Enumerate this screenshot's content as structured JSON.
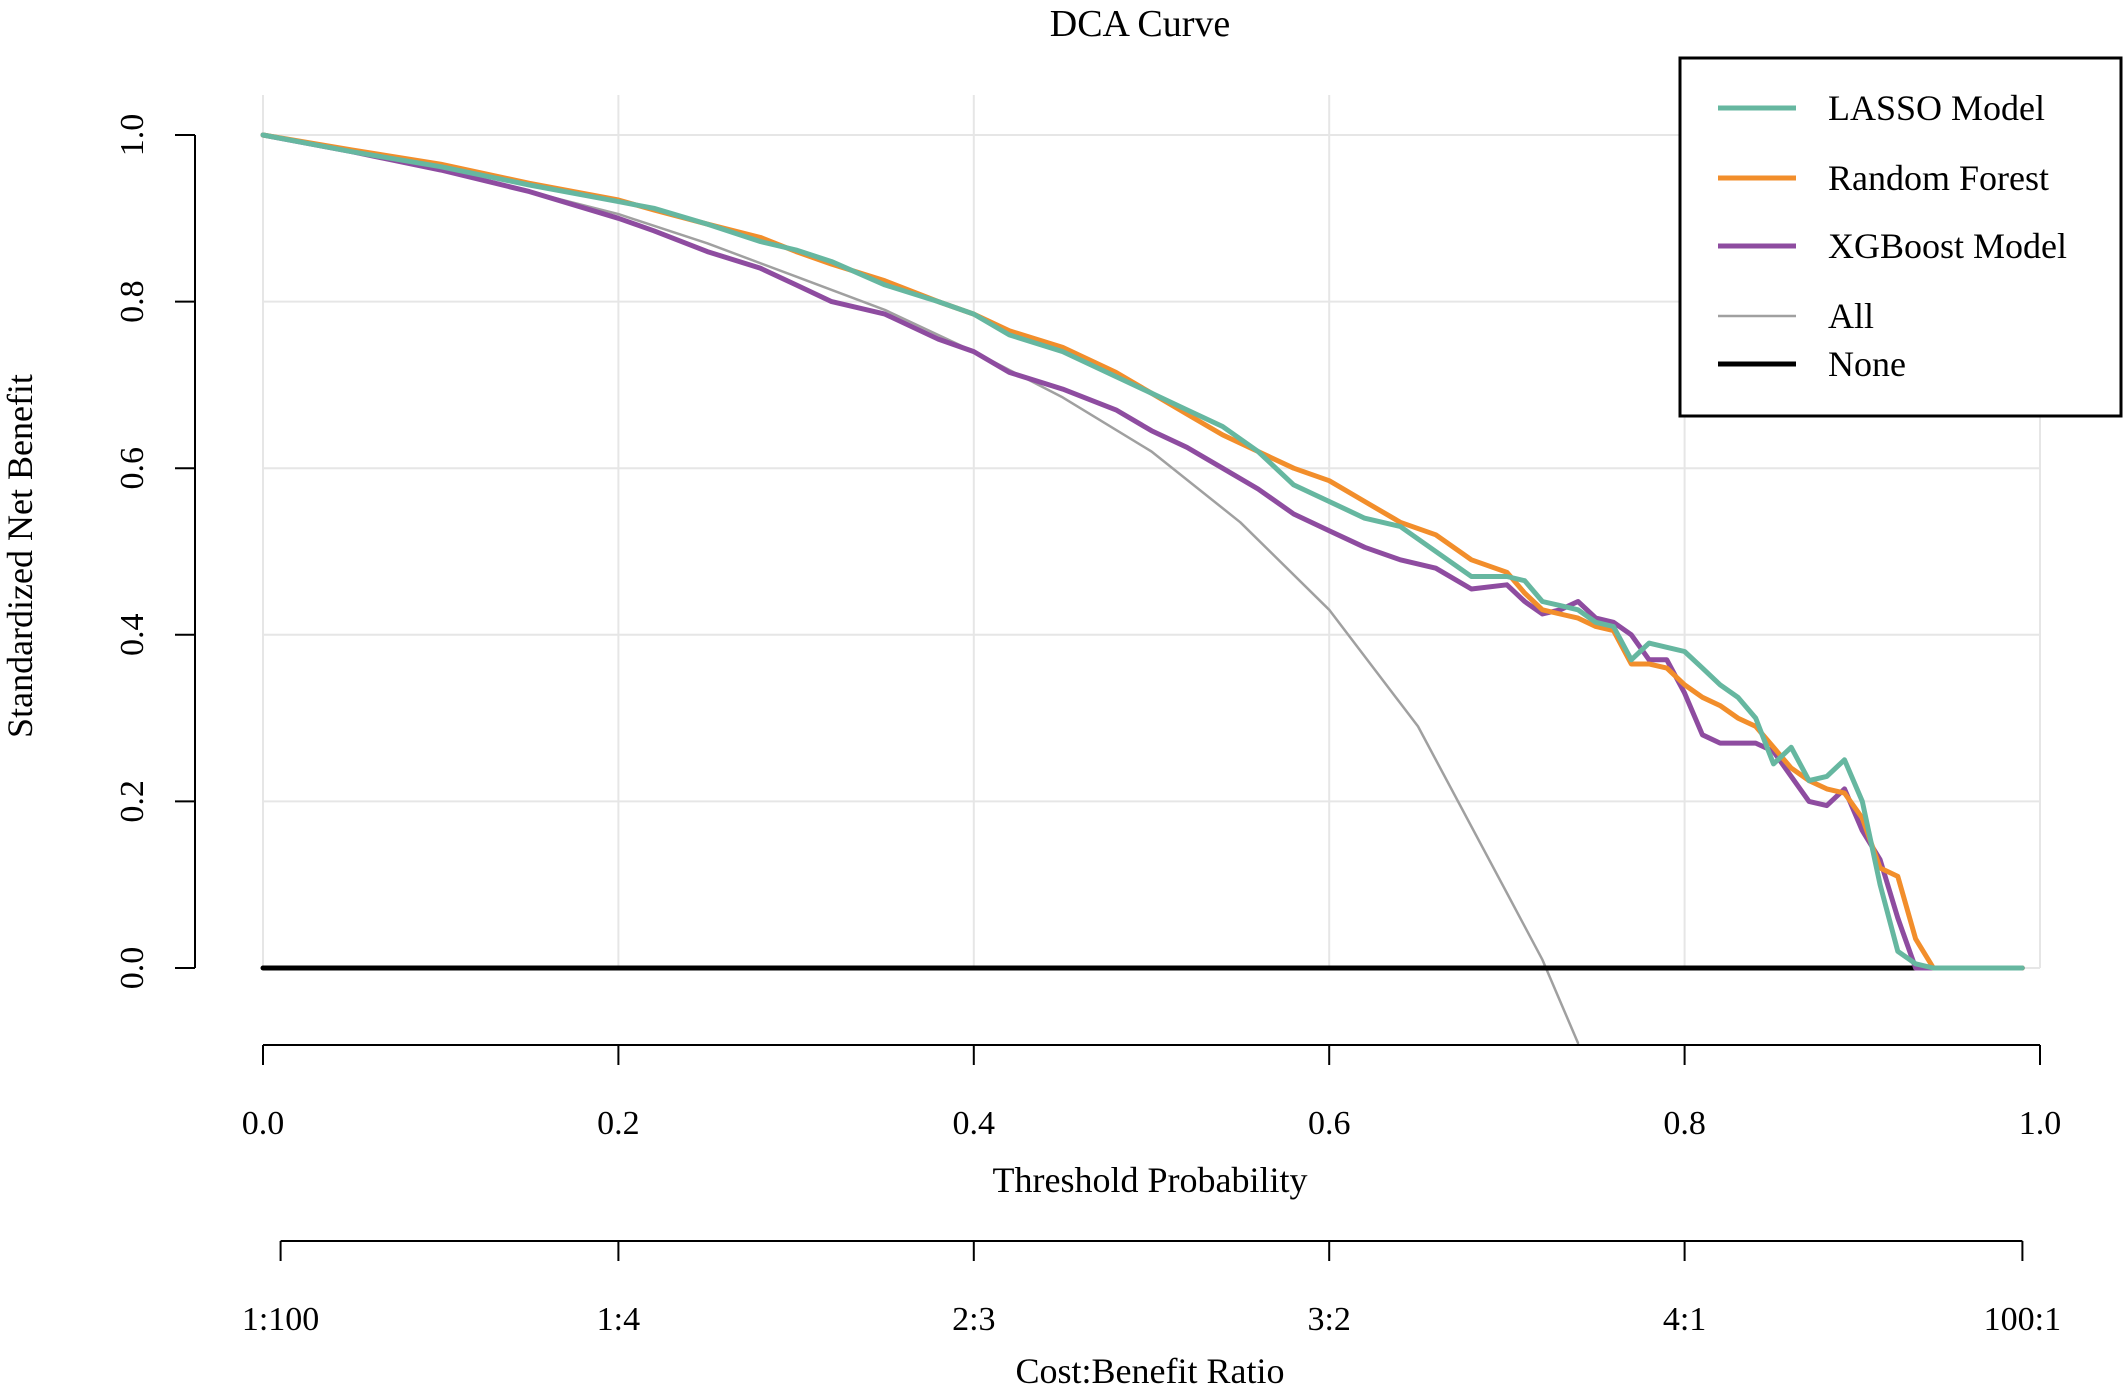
{
  "chart_data": {
    "type": "line",
    "title": "DCA Curve",
    "xlabel": "Threshold Probability",
    "ylabel": "Standardized Net Benefit",
    "x2label": "Cost:Benefit Ratio",
    "xlim": [
      0,
      1
    ],
    "ylim": [
      -0.1,
      1.05
    ],
    "grid": true,
    "legend_position": "top-right",
    "x_ticks": [
      "0.0",
      "0.2",
      "0.4",
      "0.6",
      "0.8",
      "1.0"
    ],
    "y_ticks": [
      "0.0",
      "0.2",
      "0.4",
      "0.6",
      "0.8",
      "1.0"
    ],
    "x2_ticks": [
      {
        "label": "1:100",
        "x": 0.0099
      },
      {
        "label": "1:4",
        "x": 0.2
      },
      {
        "label": "2:3",
        "x": 0.4
      },
      {
        "label": "3:2",
        "x": 0.6
      },
      {
        "label": "4:1",
        "x": 0.8
      },
      {
        "label": "100:1",
        "x": 0.9901
      }
    ],
    "series": [
      {
        "name": "LASSO Model",
        "color": "#66b7a0",
        "x": [
          0.0,
          0.05,
          0.1,
          0.15,
          0.2,
          0.22,
          0.25,
          0.28,
          0.3,
          0.32,
          0.35,
          0.38,
          0.4,
          0.42,
          0.45,
          0.48,
          0.5,
          0.52,
          0.54,
          0.56,
          0.58,
          0.6,
          0.62,
          0.64,
          0.66,
          0.68,
          0.7,
          0.71,
          0.72,
          0.73,
          0.74,
          0.75,
          0.76,
          0.77,
          0.78,
          0.79,
          0.8,
          0.81,
          0.82,
          0.83,
          0.84,
          0.85,
          0.86,
          0.87,
          0.88,
          0.89,
          0.9,
          0.91,
          0.92,
          0.93,
          0.94,
          0.96,
          0.99
        ],
        "y": [
          1.0,
          0.98,
          0.962,
          0.94,
          0.92,
          0.912,
          0.893,
          0.872,
          0.862,
          0.848,
          0.82,
          0.8,
          0.785,
          0.76,
          0.74,
          0.71,
          0.69,
          0.67,
          0.65,
          0.62,
          0.58,
          0.56,
          0.54,
          0.53,
          0.5,
          0.47,
          0.47,
          0.465,
          0.44,
          0.435,
          0.43,
          0.415,
          0.41,
          0.37,
          0.39,
          0.385,
          0.38,
          0.36,
          0.34,
          0.325,
          0.3,
          0.245,
          0.265,
          0.225,
          0.23,
          0.25,
          0.2,
          0.1,
          0.02,
          0.005,
          0.0,
          0.0,
          0.0
        ]
      },
      {
        "name": "Random Forest",
        "color": "#f28e2b",
        "x": [
          0.0,
          0.05,
          0.1,
          0.15,
          0.2,
          0.22,
          0.25,
          0.28,
          0.3,
          0.32,
          0.35,
          0.38,
          0.4,
          0.42,
          0.45,
          0.48,
          0.5,
          0.52,
          0.54,
          0.56,
          0.58,
          0.6,
          0.62,
          0.64,
          0.66,
          0.68,
          0.7,
          0.71,
          0.72,
          0.73,
          0.74,
          0.75,
          0.76,
          0.77,
          0.78,
          0.79,
          0.8,
          0.81,
          0.82,
          0.83,
          0.84,
          0.85,
          0.86,
          0.87,
          0.88,
          0.89,
          0.9,
          0.91,
          0.92,
          0.93,
          0.94,
          0.96,
          0.99
        ],
        "y": [
          1.0,
          0.982,
          0.965,
          0.942,
          0.922,
          0.91,
          0.893,
          0.877,
          0.86,
          0.845,
          0.825,
          0.8,
          0.785,
          0.765,
          0.745,
          0.715,
          0.69,
          0.665,
          0.64,
          0.62,
          0.6,
          0.585,
          0.56,
          0.535,
          0.52,
          0.49,
          0.475,
          0.45,
          0.43,
          0.425,
          0.42,
          0.41,
          0.405,
          0.365,
          0.365,
          0.36,
          0.34,
          0.325,
          0.315,
          0.3,
          0.29,
          0.265,
          0.24,
          0.225,
          0.215,
          0.21,
          0.18,
          0.12,
          0.11,
          0.035,
          0.0,
          0.0,
          0.0
        ]
      },
      {
        "name": "XGBoost Model",
        "color": "#8e4ca0",
        "x": [
          0.0,
          0.05,
          0.1,
          0.15,
          0.2,
          0.22,
          0.25,
          0.28,
          0.3,
          0.32,
          0.35,
          0.38,
          0.4,
          0.42,
          0.45,
          0.48,
          0.5,
          0.52,
          0.54,
          0.56,
          0.58,
          0.6,
          0.62,
          0.64,
          0.66,
          0.68,
          0.7,
          0.71,
          0.72,
          0.73,
          0.74,
          0.75,
          0.76,
          0.77,
          0.78,
          0.79,
          0.8,
          0.81,
          0.82,
          0.83,
          0.84,
          0.85,
          0.86,
          0.87,
          0.88,
          0.89,
          0.9,
          0.91,
          0.92,
          0.93,
          0.94,
          0.96,
          0.99
        ],
        "y": [
          1.0,
          0.98,
          0.958,
          0.932,
          0.9,
          0.885,
          0.86,
          0.84,
          0.82,
          0.8,
          0.785,
          0.755,
          0.74,
          0.715,
          0.695,
          0.67,
          0.645,
          0.625,
          0.6,
          0.575,
          0.545,
          0.525,
          0.505,
          0.49,
          0.48,
          0.455,
          0.46,
          0.44,
          0.425,
          0.43,
          0.44,
          0.42,
          0.415,
          0.4,
          0.37,
          0.37,
          0.33,
          0.28,
          0.27,
          0.27,
          0.27,
          0.26,
          0.23,
          0.2,
          0.195,
          0.215,
          0.165,
          0.13,
          0.06,
          0.0,
          0.0,
          0.0,
          0.0
        ]
      },
      {
        "name": "All",
        "color": "#a0a0a0",
        "x": [
          0.0,
          0.05,
          0.1,
          0.15,
          0.2,
          0.25,
          0.3,
          0.35,
          0.4,
          0.45,
          0.5,
          0.55,
          0.6,
          0.65,
          0.7,
          0.72,
          0.74
        ],
        "y": [
          1.0,
          0.98,
          0.958,
          0.932,
          0.905,
          0.87,
          0.83,
          0.79,
          0.74,
          0.685,
          0.62,
          0.535,
          0.43,
          0.29,
          0.09,
          0.01,
          -0.09
        ]
      },
      {
        "name": "None",
        "color": "#000000",
        "x": [
          0.0,
          0.99
        ],
        "y": [
          0.0,
          0.0
        ]
      }
    ]
  }
}
